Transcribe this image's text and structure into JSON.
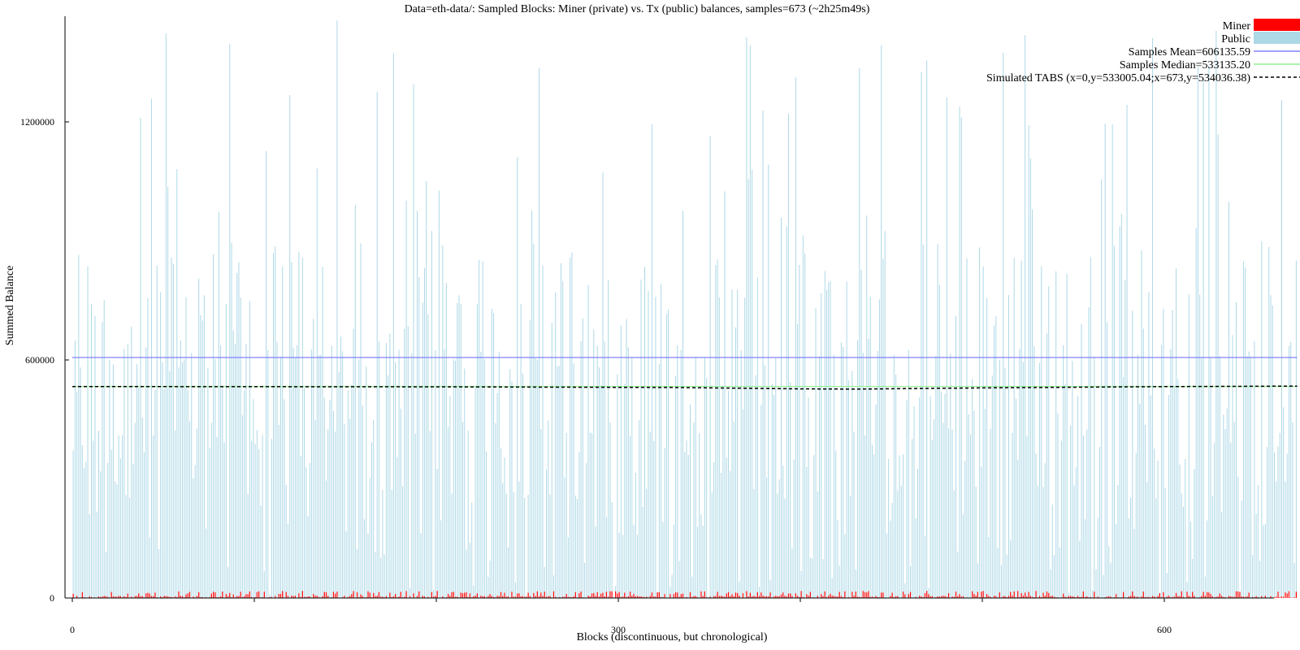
{
  "chart_data": {
    "type": "bar",
    "title": "Data=eth-data/: Sampled Blocks: Miner (private) vs. Tx (public) balances, samples=673 (~2h25m49s)",
    "xlabel": "Blocks (discontinuous, but chronological)",
    "ylabel": "Summed Balance",
    "xlim": [
      0,
      673
    ],
    "ylim": [
      0,
      1460000
    ],
    "x_ticks": [
      0,
      100,
      200,
      300,
      400,
      500,
      600
    ],
    "x_tick_labels": [
      "0",
      "",
      "",
      "300",
      "",
      "",
      "600"
    ],
    "y_ticks": [
      0,
      600000,
      1200000
    ],
    "y_tick_labels": [
      "0",
      "600000",
      "1200000"
    ],
    "legend_position": "top-right",
    "grid": false,
    "series": [
      {
        "name": "Miner",
        "kind": "bars",
        "color": "#ff0000",
        "samples": 673,
        "typical_range": [
          0,
          18000
        ]
      },
      {
        "name": "Public",
        "kind": "bars",
        "color": "#add8e6",
        "samples": 673,
        "typical_range": [
          0,
          1460000
        ]
      }
    ],
    "lines": [
      {
        "label": "Samples Mean=606135.59",
        "color": "#8080ff",
        "style": "solid",
        "y": 606135.59
      },
      {
        "label": "Samples Median=533135.20",
        "color": "#90ee90",
        "style": "solid",
        "y": 533135.2
      },
      {
        "label": "Simulated TABS (x=0,y=533005.04;x=673,y=534036.38)",
        "color": "#000000",
        "style": "dashed",
        "points": [
          [
            0,
            533005.04
          ],
          [
            200,
            532200
          ],
          [
            330,
            530500
          ],
          [
            400,
            527000
          ],
          [
            430,
            526500
          ],
          [
            500,
            529500
          ],
          [
            600,
            532800
          ],
          [
            673,
            534036.38
          ]
        ]
      }
    ]
  }
}
